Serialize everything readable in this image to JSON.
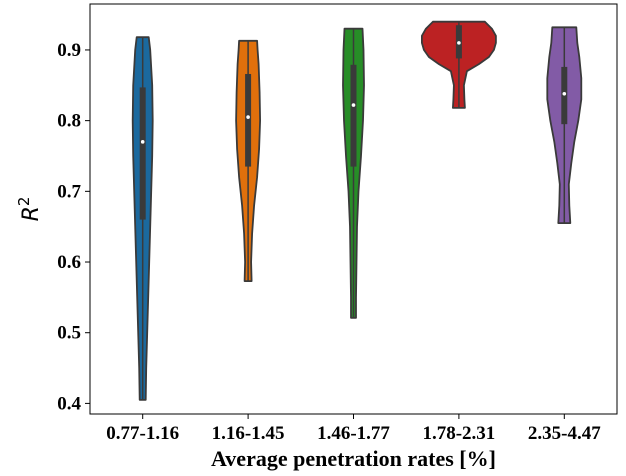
{
  "chart_data": {
    "type": "violin",
    "xlabel": "Average penetration rates [%]",
    "ylabel": "R",
    "ylabel_superscript": "2",
    "ylim": [
      0.385,
      0.965
    ],
    "yticks": [
      0.4,
      0.5,
      0.6,
      0.7,
      0.8,
      0.9
    ],
    "ytick_labels": [
      "0.4",
      "0.5",
      "0.6",
      "0.7",
      "0.8",
      "0.9"
    ],
    "grid": false,
    "categories": [
      "0.77-1.16",
      "1.16-1.45",
      "1.46-1.77",
      "1.78-2.31",
      "2.35-4.47"
    ],
    "series": [
      {
        "category": "0.77-1.16",
        "color": "#1f77b4",
        "min": 0.405,
        "q1": 0.66,
        "median": 0.77,
        "q3": 0.847,
        "max": 0.918,
        "profile": [
          [
            0.405,
            3
          ],
          [
            0.45,
            3.5
          ],
          [
            0.5,
            4.5
          ],
          [
            0.55,
            5.5
          ],
          [
            0.6,
            6.5
          ],
          [
            0.65,
            7.5
          ],
          [
            0.7,
            8.5
          ],
          [
            0.75,
            9.5
          ],
          [
            0.8,
            10
          ],
          [
            0.85,
            9.5
          ],
          [
            0.9,
            7.5
          ],
          [
            0.918,
            6
          ]
        ]
      },
      {
        "category": "1.16-1.45",
        "color": "#ff7f0e",
        "min": 0.573,
        "q1": 0.735,
        "median": 0.805,
        "q3": 0.866,
        "max": 0.913,
        "profile": [
          [
            0.573,
            3.5
          ],
          [
            0.6,
            3
          ],
          [
            0.64,
            4
          ],
          [
            0.68,
            6
          ],
          [
            0.72,
            9
          ],
          [
            0.76,
            11
          ],
          [
            0.8,
            12
          ],
          [
            0.84,
            11.5
          ],
          [
            0.88,
            10.5
          ],
          [
            0.9,
            9.5
          ],
          [
            0.913,
            9
          ]
        ]
      },
      {
        "category": "1.46-1.77",
        "color": "#2ca02c",
        "min": 0.521,
        "q1": 0.735,
        "median": 0.822,
        "q3": 0.879,
        "max": 0.93,
        "profile": [
          [
            0.521,
            2.5
          ],
          [
            0.55,
            2.5
          ],
          [
            0.6,
            3
          ],
          [
            0.65,
            3.5
          ],
          [
            0.7,
            5
          ],
          [
            0.75,
            7.5
          ],
          [
            0.8,
            9.5
          ],
          [
            0.85,
            10.5
          ],
          [
            0.9,
            10
          ],
          [
            0.93,
            9
          ]
        ]
      },
      {
        "category": "1.78-2.31",
        "color": "#d62728",
        "min": 0.818,
        "q1": 0.888,
        "median": 0.91,
        "q3": 0.935,
        "max": 0.94,
        "profile": [
          [
            0.818,
            6
          ],
          [
            0.83,
            5.5
          ],
          [
            0.85,
            5
          ],
          [
            0.87,
            8
          ],
          [
            0.88,
            20
          ],
          [
            0.89,
            30
          ],
          [
            0.9,
            35
          ],
          [
            0.91,
            37
          ],
          [
            0.92,
            37
          ],
          [
            0.93,
            33
          ],
          [
            0.94,
            26
          ]
        ]
      },
      {
        "category": "2.35-4.47",
        "color": "#9467bd",
        "min": 0.655,
        "q1": 0.795,
        "median": 0.838,
        "q3": 0.876,
        "max": 0.932,
        "profile": [
          [
            0.655,
            6
          ],
          [
            0.68,
            5
          ],
          [
            0.71,
            4.5
          ],
          [
            0.74,
            7
          ],
          [
            0.77,
            10
          ],
          [
            0.8,
            14
          ],
          [
            0.83,
            17
          ],
          [
            0.86,
            17
          ],
          [
            0.89,
            15
          ],
          [
            0.91,
            13
          ],
          [
            0.932,
            12
          ]
        ]
      }
    ]
  }
}
